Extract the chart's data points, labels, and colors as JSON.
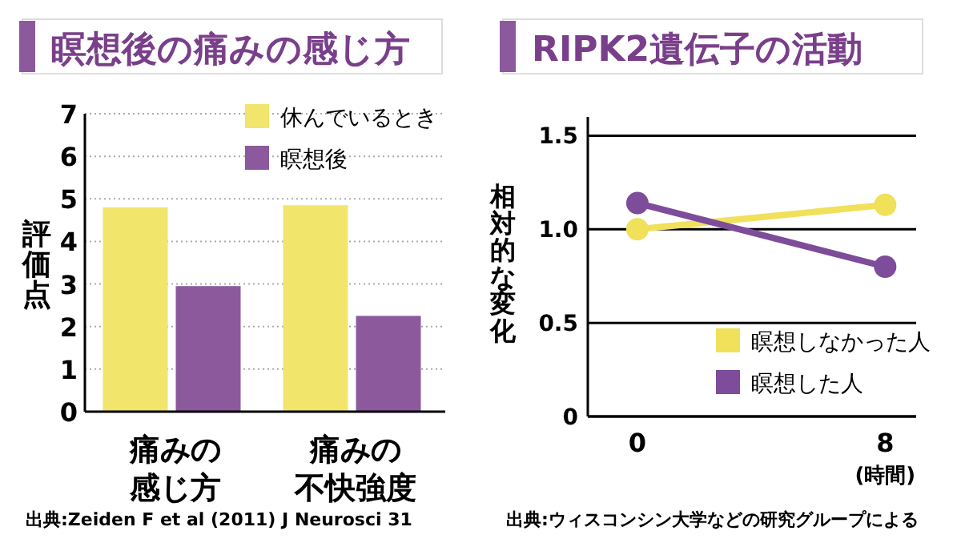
{
  "chart_data": [
    {
      "type": "bar",
      "title": "瞑想後の痛みの感じ方",
      "ylabel": "評価点",
      "categories": [
        "痛みの感じ方",
        "痛みの不快強度"
      ],
      "series": [
        {
          "name": "休んでいるとき",
          "color": "#f2e56c",
          "values": [
            4.8,
            4.85
          ]
        },
        {
          "name": "瞑想後",
          "color": "#8c5a9c",
          "values": [
            2.95,
            2.25
          ]
        }
      ],
      "ylim": [
        0,
        7
      ],
      "yticks": [
        0,
        1,
        2,
        3,
        4,
        5,
        6,
        7
      ],
      "grid": "y",
      "legend": "top right",
      "annotations": [
        "出典:Zeiden F et al (2011) J Neurosci 31"
      ]
    },
    {
      "type": "line",
      "title": "RIPK2遺伝子の活動",
      "ylabel": "相対的な変化",
      "xlabel": "(時間)",
      "x": [
        0,
        8
      ],
      "series": [
        {
          "name": "瞑想しなかった人",
          "color": "#f0e05a",
          "values": [
            1.0,
            1.13
          ]
        },
        {
          "name": "瞑想した人",
          "color": "#7d4c9a",
          "values": [
            1.14,
            0.8
          ]
        }
      ],
      "xlim": [
        -1.6,
        9
      ],
      "xticks": [
        0,
        8
      ],
      "ylim": [
        0,
        1.6
      ],
      "yticks": [
        0,
        {
          "value": 0.5,
          "label": "0.5"
        },
        {
          "value": 1.0,
          "label": "1.0"
        },
        {
          "value": 1.5,
          "label": "1.5"
        }
      ],
      "grid": "y",
      "legend": "bottom right",
      "marker": "circle",
      "line_style": "solid",
      "annotations": [
        "出典:ウィスコンシン大学などの研究グループによる"
      ]
    }
  ]
}
